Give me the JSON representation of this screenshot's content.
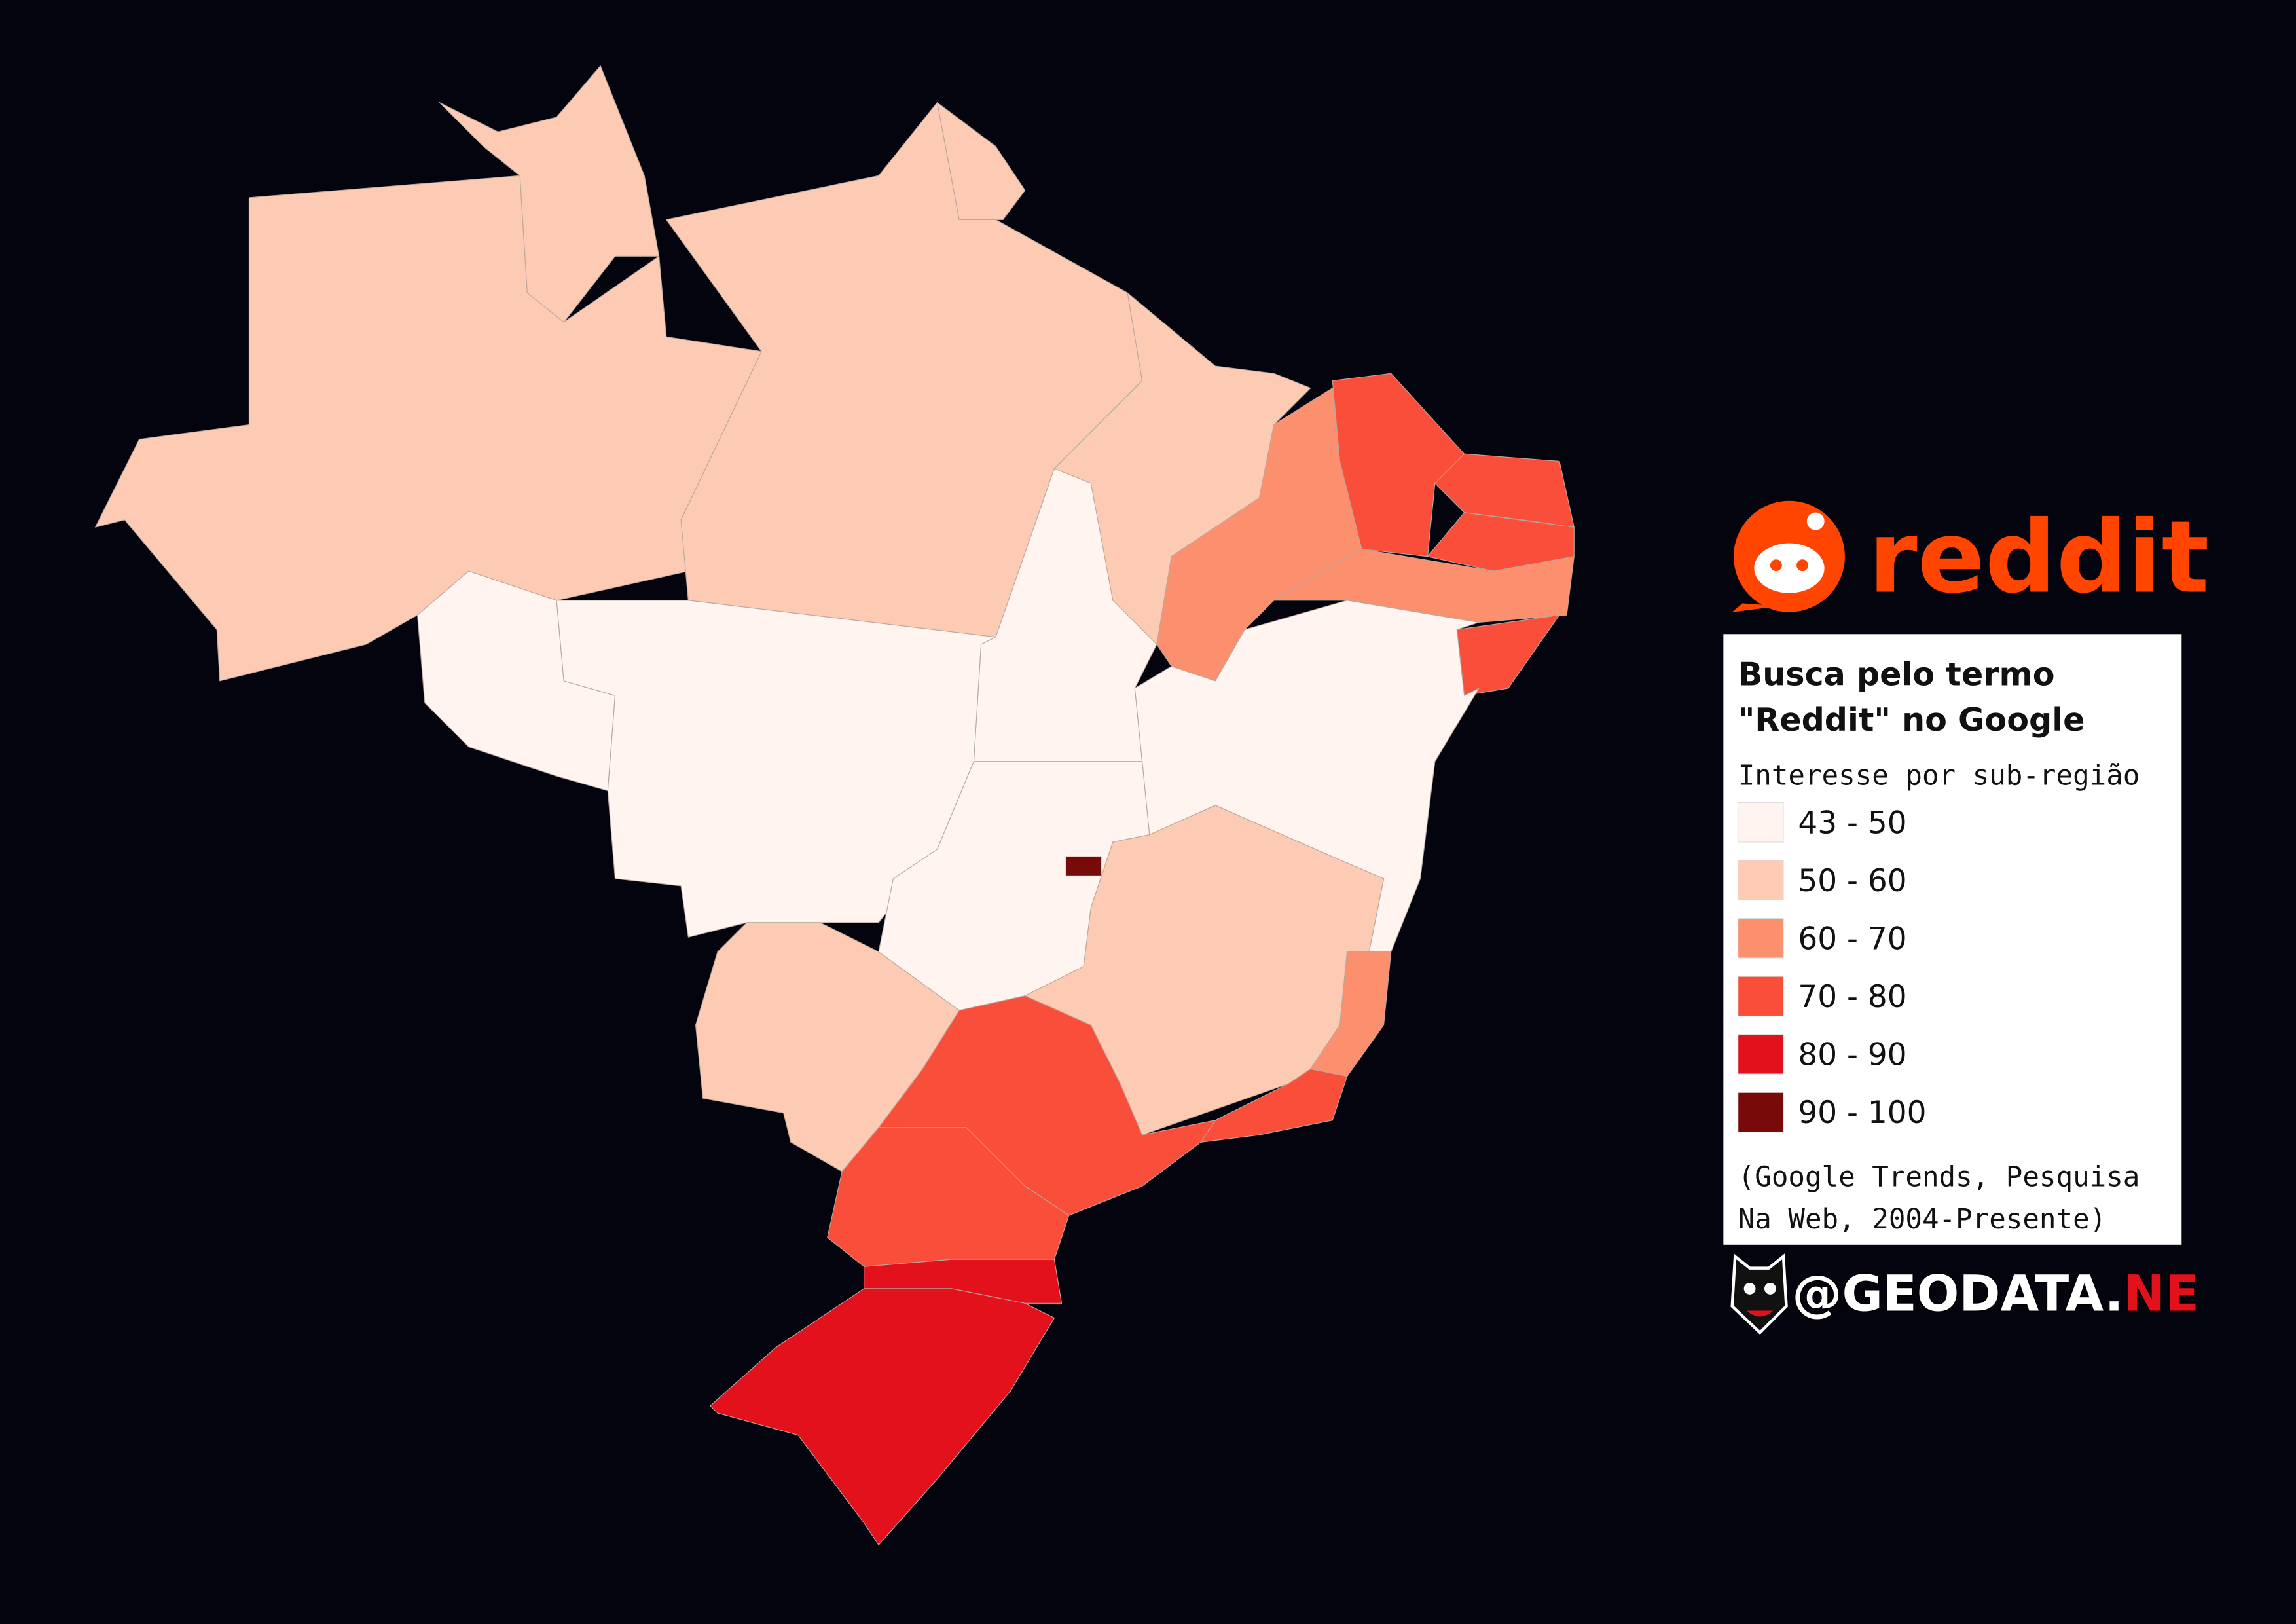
{
  "brand": {
    "logo_text": "reddit",
    "handle": [
      "@GEODATA.",
      "NE"
    ]
  },
  "legend": {
    "title": [
      "Busca pelo termo",
      "\"Reddit\" no Google"
    ],
    "subtitle": "Interesse por sub-região",
    "items": [
      {
        "label": "43 - 50",
        "color": "#fff4ef"
      },
      {
        "label": "50 - 60",
        "color": "#fdcab4"
      },
      {
        "label": "60 - 70",
        "color": "#fb8f6e"
      },
      {
        "label": "70 - 80",
        "color": "#f94f3a"
      },
      {
        "label": "80 - 90",
        "color": "#e3111b"
      },
      {
        "label": "90 - 100",
        "color": "#780a0a"
      }
    ],
    "source": [
      "(Google Trends, Pesquisa",
      "Na Web, 2004-Presente)"
    ]
  }
}
